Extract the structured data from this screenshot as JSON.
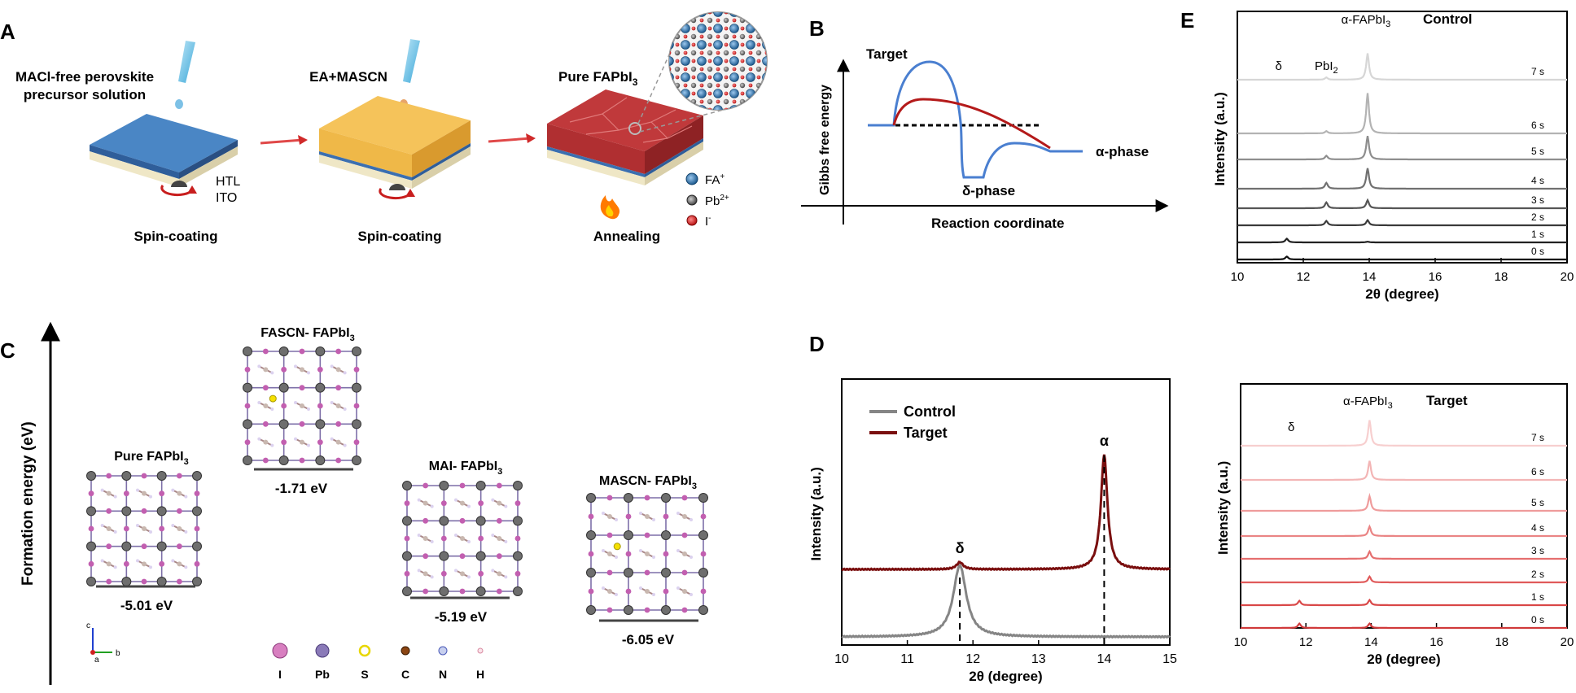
{
  "panel_letters": {
    "A": "A",
    "B": "B",
    "C": "C",
    "D": "D",
    "E": "E"
  },
  "panel_a": {
    "step1_title_line1": "MACl-free perovskite",
    "step1_title_line2": "precursor solution",
    "step2_title": "EA+MASCN",
    "step3_title": "Pure FAPbI",
    "step3_title_sub": "3",
    "layer_label_htl": "HTL",
    "layer_label_ito": "ITO",
    "caption1": "Spin-coating",
    "caption2": "Spin-coating",
    "caption3": "Annealing",
    "legend": [
      {
        "label": "FA",
        "sup": "+",
        "color": "#1d5a8f"
      },
      {
        "label": "Pb",
        "sup": "2+",
        "color": "#555555"
      },
      {
        "label": "I",
        "sup": "-",
        "color": "#c81e1e"
      }
    ],
    "colors": {
      "substrate": "#4a86c5",
      "ea_film": "#f5c35a",
      "perovskite": "#c0393b"
    }
  },
  "panel_b": {
    "target_label": "Target",
    "ylabel": "Gibbs free energy",
    "xlabel": "Reaction coordinate",
    "alpha_label": "α-phase",
    "delta_label": "δ-phase",
    "colors": {
      "control_curve": "#4a7fd0",
      "target_curve": "#b41a1a"
    }
  },
  "panel_c": {
    "ylabel": "Formation energy (eV)",
    "structures": [
      {
        "name": "Pure FAPbI",
        "sub": "3",
        "energy": "-5.01 eV",
        "energy_value": -5.01
      },
      {
        "name": "FASCN- FAPbI",
        "sub": "3",
        "energy": "-1.71 eV",
        "energy_value": -1.71
      },
      {
        "name": "MAI- FAPbI",
        "sub": "3",
        "energy": "-5.19 eV",
        "energy_value": -5.19
      },
      {
        "name": "MASCN- FAPbI",
        "sub": "3",
        "energy": "-6.05 eV",
        "energy_value": -6.05
      }
    ],
    "axis_labels": {
      "c": "c",
      "b": "b",
      "a": "a"
    },
    "element_legend": [
      {
        "label": "I",
        "color": "#d87fc0"
      },
      {
        "label": "Pb",
        "color": "#8a7ab8"
      },
      {
        "label": "S",
        "color": "#e8d700"
      },
      {
        "label": "C",
        "color": "#8b4513"
      },
      {
        "label": "N",
        "color": "#8a9ad8"
      },
      {
        "label": "H",
        "color": "#f2b8c6"
      }
    ]
  },
  "chart_data": [
    {
      "id": "panel-d",
      "type": "line",
      "title": "",
      "xlabel": "2θ (degree)",
      "ylabel": "Intensity (a.u.)",
      "xlim": [
        10,
        15
      ],
      "xticks": [
        "10",
        "11",
        "12",
        "13",
        "14",
        "15"
      ],
      "legend": [
        "Control",
        "Target"
      ],
      "series": [
        {
          "name": "Control",
          "color": "#858585",
          "peaks": [
            {
              "x": 11.8,
              "height": 1.0
            }
          ]
        },
        {
          "name": "Target",
          "color": "#7a0f0f",
          "peaks": [
            {
              "x": 11.8,
              "height": 0.1
            },
            {
              "x": 14.0,
              "height": 1.6
            }
          ]
        }
      ],
      "annotations": [
        {
          "text": "δ",
          "x": 11.8
        },
        {
          "text": "α",
          "x": 14.0
        }
      ]
    },
    {
      "id": "panel-e-control",
      "type": "line",
      "title": "Control",
      "xlabel": "2θ (degree)",
      "ylabel": "Intensity (a.u.)",
      "xlim": [
        10,
        20
      ],
      "xticks": [
        "10",
        "12",
        "14",
        "16",
        "18",
        "20"
      ],
      "peak_labels": [
        {
          "text": "δ",
          "x": 11.4
        },
        {
          "text": "PbI",
          "sub": "2",
          "x": 12.7
        },
        {
          "text": "α-FAPbI",
          "sub": "3",
          "x": 13.9
        }
      ],
      "series": [
        {
          "name": "0 s",
          "color": "#111111",
          "peaks": [
            {
              "x": 11.5,
              "h": 0.4
            }
          ]
        },
        {
          "name": "1 s",
          "color": "#222222",
          "peaks": [
            {
              "x": 11.5,
              "h": 0.5
            },
            {
              "x": 13.95,
              "h": 0.1
            }
          ]
        },
        {
          "name": "2 s",
          "color": "#3a3a3a",
          "peaks": [
            {
              "x": 12.7,
              "h": 0.6
            },
            {
              "x": 13.95,
              "h": 0.7
            }
          ]
        },
        {
          "name": "3 s",
          "color": "#555555",
          "peaks": [
            {
              "x": 12.7,
              "h": 0.8
            },
            {
              "x": 13.95,
              "h": 1.1
            }
          ]
        },
        {
          "name": "4 s",
          "color": "#707070",
          "peaks": [
            {
              "x": 12.7,
              "h": 0.8
            },
            {
              "x": 13.95,
              "h": 2.8
            }
          ]
        },
        {
          "name": "5 s",
          "color": "#8e8e8e",
          "peaks": [
            {
              "x": 12.7,
              "h": 0.5
            },
            {
              "x": 13.95,
              "h": 3.2
            }
          ]
        },
        {
          "name": "6 s",
          "color": "#b3b3b3",
          "peaks": [
            {
              "x": 12.7,
              "h": 0.3
            },
            {
              "x": 13.95,
              "h": 5.5
            }
          ]
        },
        {
          "name": "7 s",
          "color": "#d6d6d6",
          "peaks": [
            {
              "x": 12.7,
              "h": 0.3
            },
            {
              "x": 13.95,
              "h": 3.6
            }
          ]
        }
      ]
    },
    {
      "id": "panel-e-target",
      "type": "line",
      "title": "Target",
      "xlabel": "2θ (degree)",
      "ylabel": "Intensity (a.u.)",
      "xlim": [
        10,
        20
      ],
      "xticks": [
        "10",
        "12",
        "14",
        "16",
        "18",
        "20"
      ],
      "peak_labels": [
        {
          "text": "δ",
          "x": 11.7
        },
        {
          "text": "α-FAPbI",
          "sub": "3",
          "x": 13.9
        }
      ],
      "series": [
        {
          "name": "0 s",
          "color": "#d0393a",
          "peaks": [
            {
              "x": 11.8,
              "h": 0.6
            },
            {
              "x": 13.95,
              "h": 0.6
            }
          ]
        },
        {
          "name": "1 s",
          "color": "#d94848",
          "peaks": [
            {
              "x": 11.8,
              "h": 0.6
            },
            {
              "x": 13.95,
              "h": 0.7
            }
          ]
        },
        {
          "name": "2 s",
          "color": "#e05a5a",
          "peaks": [
            {
              "x": 13.95,
              "h": 0.8
            }
          ]
        },
        {
          "name": "3 s",
          "color": "#e56f6f",
          "peaks": [
            {
              "x": 13.95,
              "h": 1.0
            }
          ]
        },
        {
          "name": "4 s",
          "color": "#ea8585",
          "peaks": [
            {
              "x": 13.95,
              "h": 1.3
            }
          ]
        },
        {
          "name": "5 s",
          "color": "#ef9c9c",
          "peaks": [
            {
              "x": 13.95,
              "h": 2.0
            }
          ]
        },
        {
          "name": "6 s",
          "color": "#f3b5b5",
          "peaks": [
            {
              "x": 13.95,
              "h": 2.6
            }
          ]
        },
        {
          "name": "7 s",
          "color": "#f7cfcf",
          "peaks": [
            {
              "x": 13.95,
              "h": 3.5
            }
          ]
        }
      ]
    }
  ]
}
